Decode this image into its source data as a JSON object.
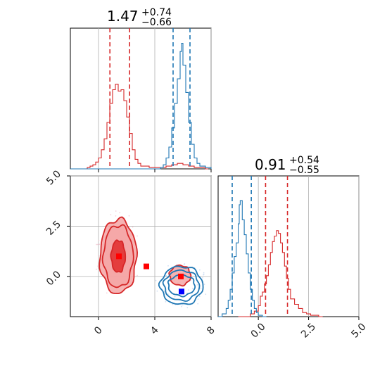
{
  "colors": {
    "red": "#d62728",
    "red_fill_light": "#f4a6a6",
    "red_fill_dark": "#e02a2a",
    "blue": "#1f77b4",
    "blue_marker": "#0000ff",
    "red_marker": "#ff0000",
    "grid": "#b0b0b0",
    "axis": "#000000"
  },
  "panel_1": {
    "title": {
      "value": "1.47",
      "upper": "+0.74",
      "lower": "−0.66"
    }
  },
  "panel_2": {
    "title": {
      "value": "0.91",
      "upper": "+0.54",
      "lower": "−0.55"
    }
  },
  "chart_data": {
    "type": "corner",
    "param1_axis": {
      "range": [
        -2,
        8
      ],
      "ticks": [
        0,
        4,
        8
      ],
      "tick_labels": [
        "0",
        "4",
        "8"
      ]
    },
    "param2_axis": {
      "range": [
        -2,
        5
      ],
      "ticks": [
        0,
        2.5,
        5
      ],
      "tick_labels": [
        "0.0",
        "2.5",
        "5.0"
      ]
    },
    "grid": true,
    "series": [
      {
        "color_key": "red",
        "param1_quantiles": [
          0.81,
          1.47,
          2.21
        ],
        "param2_quantiles": [
          0.36,
          0.91,
          1.45
        ],
        "param1_hist": {
          "bins": [
            [
              -2.0,
              0.0
            ],
            [
              -1.6,
              0.0
            ],
            [
              -1.2,
              0.0
            ],
            [
              -0.8,
              0.01
            ],
            [
              -0.6,
              0.02
            ],
            [
              -0.4,
              0.03
            ],
            [
              -0.2,
              0.05
            ],
            [
              0.0,
              0.08
            ],
            [
              0.2,
              0.14
            ],
            [
              0.4,
              0.22
            ],
            [
              0.6,
              0.34
            ],
            [
              0.8,
              0.48
            ],
            [
              1.0,
              0.58
            ],
            [
              1.2,
              0.62
            ],
            [
              1.4,
              0.57
            ],
            [
              1.6,
              0.58
            ],
            [
              1.8,
              0.5
            ],
            [
              2.0,
              0.38
            ],
            [
              2.2,
              0.26
            ],
            [
              2.4,
              0.14
            ],
            [
              2.6,
              0.07
            ],
            [
              2.8,
              0.04
            ],
            [
              3.0,
              0.02
            ],
            [
              3.2,
              0.02
            ],
            [
              3.6,
              0.01
            ],
            [
              4.0,
              0.01
            ],
            [
              4.4,
              0.01
            ],
            [
              4.8,
              0.02
            ],
            [
              5.2,
              0.03
            ],
            [
              5.6,
              0.04
            ],
            [
              6.0,
              0.03
            ],
            [
              6.4,
              0.02
            ],
            [
              6.8,
              0.01
            ],
            [
              7.2,
              0.01
            ],
            [
              7.6,
              0.0
            ]
          ]
        },
        "param2_hist": {
          "bins": [
            [
              -1.0,
              0.0
            ],
            [
              -0.6,
              0.0
            ],
            [
              -0.4,
              0.02
            ],
            [
              -0.2,
              0.04
            ],
            [
              0.0,
              0.08
            ],
            [
              0.1,
              0.15
            ],
            [
              0.2,
              0.18
            ],
            [
              0.3,
              0.24
            ],
            [
              0.4,
              0.3
            ],
            [
              0.5,
              0.38
            ],
            [
              0.6,
              0.47
            ],
            [
              0.7,
              0.55
            ],
            [
              0.8,
              0.59
            ],
            [
              0.9,
              0.63
            ],
            [
              1.0,
              0.61
            ],
            [
              1.1,
              0.54
            ],
            [
              1.2,
              0.47
            ],
            [
              1.3,
              0.37
            ],
            [
              1.4,
              0.28
            ],
            [
              1.5,
              0.2
            ],
            [
              1.6,
              0.13
            ],
            [
              1.8,
              0.09
            ],
            [
              2.0,
              0.06
            ],
            [
              2.2,
              0.03
            ],
            [
              2.4,
              0.02
            ],
            [
              2.6,
              0.01
            ],
            [
              3.0,
              0.0
            ]
          ]
        },
        "contours": [
          {
            "cx": 1.4,
            "cy": 1.0,
            "rx": 1.3,
            "ry": 1.85,
            "level": "outer"
          },
          {
            "cx": 1.4,
            "cy": 1.0,
            "rx": 1.05,
            "ry": 1.55,
            "level": "middle"
          },
          {
            "cx": 1.4,
            "cy": 1.0,
            "rx": 0.5,
            "ry": 0.8,
            "level": "inner"
          },
          {
            "cx": 5.8,
            "cy": 0.05,
            "rx": 0.75,
            "ry": 0.5,
            "level": "outer"
          }
        ],
        "markers": [
          {
            "x": 1.45,
            "y": 1.0
          },
          {
            "x": 3.4,
            "y": 0.5
          },
          {
            "x": 5.85,
            "y": 0.0
          }
        ]
      },
      {
        "color_key": "blue",
        "param1_quantiles": [
          5.3,
          5.9,
          6.5
        ],
        "param2_quantiles": [
          -1.3,
          -0.95,
          -0.35
        ],
        "param1_hist": {
          "bins": [
            [
              -2.0,
              0.0
            ],
            [
              4.0,
              0.0
            ],
            [
              4.4,
              0.01
            ],
            [
              4.6,
              0.03
            ],
            [
              4.8,
              0.08
            ],
            [
              5.0,
              0.16
            ],
            [
              5.2,
              0.3
            ],
            [
              5.4,
              0.48
            ],
            [
              5.6,
              0.66
            ],
            [
              5.8,
              0.86
            ],
            [
              5.9,
              0.92
            ],
            [
              6.0,
              0.76
            ],
            [
              6.2,
              0.56
            ],
            [
              6.4,
              0.34
            ],
            [
              6.6,
              0.18
            ],
            [
              6.8,
              0.08
            ],
            [
              7.0,
              0.04
            ],
            [
              7.2,
              0.02
            ],
            [
              7.6,
              0.01
            ],
            [
              8.0,
              0.0
            ]
          ]
        },
        "param2_hist": {
          "bins": [
            [
              -2.0,
              0.0
            ],
            [
              -1.8,
              0.02
            ],
            [
              -1.6,
              0.06
            ],
            [
              -1.5,
              0.12
            ],
            [
              -1.4,
              0.2
            ],
            [
              -1.3,
              0.32
            ],
            [
              -1.2,
              0.44
            ],
            [
              -1.1,
              0.54
            ],
            [
              -1.0,
              0.68
            ],
            [
              -0.95,
              0.82
            ],
            [
              -0.9,
              0.85
            ],
            [
              -0.8,
              0.71
            ],
            [
              -0.7,
              0.6
            ],
            [
              -0.6,
              0.46
            ],
            [
              -0.5,
              0.32
            ],
            [
              -0.4,
              0.2
            ],
            [
              -0.3,
              0.12
            ],
            [
              -0.2,
              0.06
            ],
            [
              -0.1,
              0.03
            ],
            [
              0.0,
              0.01
            ],
            [
              0.2,
              0.0
            ]
          ]
        },
        "contours": [
          {
            "cx": 5.9,
            "cy": -0.45,
            "rx": 1.5,
            "ry": 0.95,
            "level": "outer"
          },
          {
            "cx": 5.9,
            "cy": -0.45,
            "rx": 1.25,
            "ry": 0.75,
            "level": "middle"
          },
          {
            "cx": 5.9,
            "cy": -0.45,
            "rx": 0.95,
            "ry": 0.52,
            "level": "inner"
          }
        ],
        "markers": [
          {
            "x": 5.9,
            "y": -0.75
          }
        ]
      }
    ]
  }
}
